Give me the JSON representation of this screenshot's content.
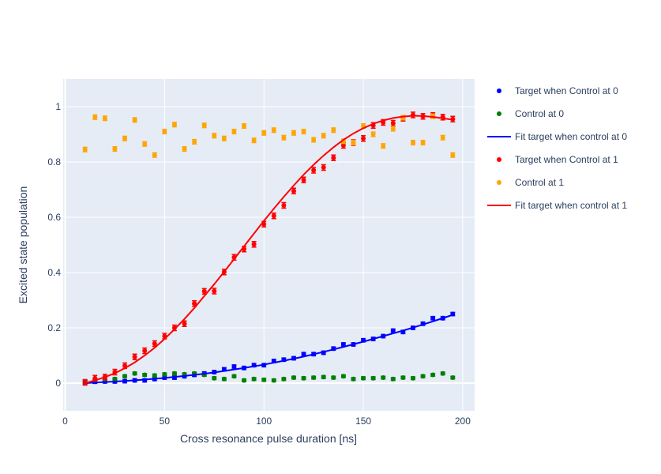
{
  "chart_data": {
    "type": "scatter",
    "title": "",
    "xlabel": "Cross resonance pulse duration [ns]",
    "ylabel": "Excited state population",
    "xlim": [
      -1,
      206
    ],
    "ylim": [
      -0.1,
      1.1
    ],
    "x_ticks": [
      0,
      50,
      100,
      150,
      200
    ],
    "y_ticks": [
      0,
      0.2,
      0.4,
      0.6,
      0.8,
      1
    ],
    "x_tick_labels": [
      "0",
      "50",
      "100",
      "150",
      "200"
    ],
    "y_tick_labels": [
      "0",
      "0.2",
      "0.4",
      "0.6",
      "0.8",
      "1"
    ],
    "grid": true,
    "legend_position": "right",
    "x": [
      10,
      15,
      20,
      25,
      30,
      35,
      40,
      45,
      50,
      55,
      60,
      65,
      70,
      75,
      80,
      85,
      90,
      95,
      100,
      105,
      110,
      115,
      120,
      125,
      130,
      135,
      140,
      145,
      150,
      155,
      160,
      165,
      170,
      175,
      180,
      185,
      190,
      195
    ],
    "series": [
      {
        "name": "Target when Control at 0",
        "kind": "markers",
        "color": "#0000ff",
        "error": 0.006,
        "values": [
          0.003,
          0.005,
          0.006,
          0.006,
          0.007,
          0.01,
          0.01,
          0.015,
          0.02,
          0.02,
          0.025,
          0.03,
          0.035,
          0.04,
          0.05,
          0.06,
          0.055,
          0.065,
          0.065,
          0.08,
          0.085,
          0.09,
          0.105,
          0.105,
          0.11,
          0.125,
          0.14,
          0.14,
          0.155,
          0.16,
          0.17,
          0.19,
          0.185,
          0.2,
          0.215,
          0.235,
          0.235,
          0.25
        ]
      },
      {
        "name": "Control at 0",
        "kind": "markers",
        "color": "#008000",
        "error": 0.005,
        "values": [
          0.005,
          0.01,
          0.015,
          0.015,
          0.025,
          0.035,
          0.03,
          0.028,
          0.032,
          0.035,
          0.032,
          0.035,
          0.03,
          0.018,
          0.015,
          0.025,
          0.01,
          0.015,
          0.012,
          0.01,
          0.015,
          0.02,
          0.018,
          0.02,
          0.022,
          0.02,
          0.025,
          0.015,
          0.018,
          0.018,
          0.02,
          0.015,
          0.02,
          0.018,
          0.025,
          0.03,
          0.035,
          0.02
        ]
      },
      {
        "name": "Fit target when control at 0",
        "kind": "line",
        "color": "#0000ff",
        "x": [
          10,
          20,
          30,
          40,
          50,
          60,
          70,
          80,
          90,
          100,
          110,
          120,
          130,
          140,
          150,
          160,
          170,
          180,
          190,
          195
        ],
        "values": [
          0.0,
          0.004,
          0.008,
          0.013,
          0.019,
          0.026,
          0.034,
          0.044,
          0.055,
          0.067,
          0.081,
          0.096,
          0.113,
          0.131,
          0.15,
          0.17,
          0.19,
          0.212,
          0.235,
          0.247
        ]
      },
      {
        "name": "Target when Control at 1",
        "kind": "markers",
        "color": "#ff0000",
        "error": 0.01,
        "values": [
          0.003,
          0.018,
          0.022,
          0.04,
          0.063,
          0.095,
          0.117,
          0.143,
          0.17,
          0.2,
          0.215,
          0.288,
          0.332,
          0.333,
          0.402,
          0.455,
          0.485,
          0.502,
          0.575,
          0.605,
          0.643,
          0.695,
          0.735,
          0.77,
          0.78,
          0.815,
          0.86,
          0.87,
          0.885,
          0.932,
          0.943,
          0.94,
          0.958,
          0.97,
          0.965,
          0.968,
          0.962,
          0.955
        ]
      },
      {
        "name": "Control at 1",
        "kind": "markers",
        "color": "#ffa500",
        "error": 0.008,
        "values": [
          0.845,
          0.962,
          0.958,
          0.847,
          0.885,
          0.952,
          0.865,
          0.825,
          0.91,
          0.935,
          0.847,
          0.873,
          0.932,
          0.895,
          0.885,
          0.91,
          0.93,
          0.878,
          0.905,
          0.915,
          0.888,
          0.905,
          0.91,
          0.88,
          0.895,
          0.915,
          0.875,
          0.87,
          0.93,
          0.9,
          0.858,
          0.92,
          0.96,
          0.87,
          0.87,
          0.965,
          0.888,
          0.825
        ]
      },
      {
        "name": "Fit target when control at 1",
        "kind": "line",
        "color": "#ff0000",
        "x": [
          10,
          15,
          20,
          25,
          30,
          35,
          40,
          45,
          50,
          55,
          60,
          65,
          70,
          75,
          80,
          85,
          90,
          95,
          100,
          105,
          110,
          115,
          120,
          125,
          130,
          135,
          140,
          145,
          150,
          155,
          160,
          165,
          170,
          175,
          180,
          185,
          190,
          195
        ],
        "values": [
          0.0,
          0.01,
          0.022,
          0.036,
          0.054,
          0.075,
          0.1,
          0.128,
          0.16,
          0.195,
          0.232,
          0.272,
          0.315,
          0.358,
          0.403,
          0.449,
          0.495,
          0.541,
          0.587,
          0.631,
          0.674,
          0.715,
          0.754,
          0.79,
          0.823,
          0.853,
          0.88,
          0.903,
          0.922,
          0.938,
          0.95,
          0.959,
          0.964,
          0.967,
          0.966,
          0.963,
          0.958,
          0.953
        ]
      }
    ]
  }
}
